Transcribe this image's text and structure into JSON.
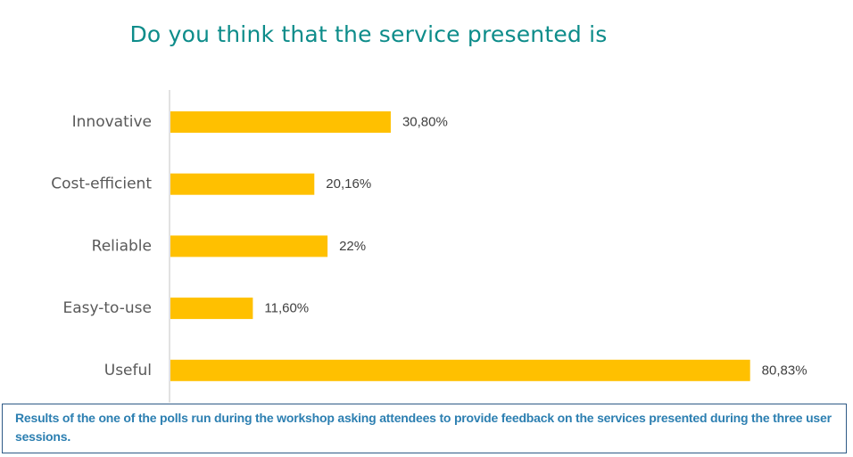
{
  "chart_data": {
    "type": "bar",
    "orientation": "horizontal",
    "title": "Do you think that the service presented is",
    "categories": [
      "Innovative",
      "Cost-efficient",
      "Reliable",
      "Easy-to-use",
      "Useful"
    ],
    "values": [
      30.8,
      20.16,
      22,
      11.6,
      80.83
    ],
    "value_labels": [
      "30,80%",
      "20,16%",
      "22%",
      "11,60%",
      "80,83%"
    ],
    "xlim": [
      0,
      100
    ],
    "xlabel": "",
    "ylabel": "",
    "grid": false,
    "bar_color": "#ffc000"
  },
  "caption": "Results of the one of the polls run during the workshop asking attendees to provide feedback on the services presented during the three user sessions.",
  "colors": {
    "title": "#0d8c8a",
    "caption_text": "#2c7fb1",
    "caption_border": "#2e5a86",
    "axis": "#d9d9d9",
    "category_label": "#595959",
    "value_label": "#404040"
  }
}
